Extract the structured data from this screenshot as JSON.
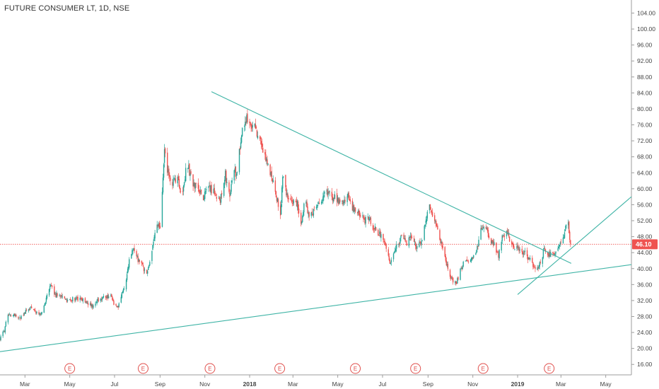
{
  "chart_title": "FUTURE CONSUMER LT, 1D, NSE",
  "colors": {
    "up": "#26a69a",
    "down": "#ef5350",
    "trendline": "#3fb4a6",
    "axis": "#9e9e9e",
    "price_label_bg": "#ef5350",
    "earnings": "#e0514e"
  },
  "chart_data": {
    "type": "candlestick",
    "title": "FUTURE CONSUMER LT, 1D, NSE",
    "symbol": "FUTURE CONSUMER LT",
    "interval": "1D",
    "exchange": "NSE",
    "y_ticks": [
      16,
      20,
      24,
      28,
      32,
      36,
      40,
      44,
      48,
      52,
      56,
      60,
      64,
      68,
      72,
      76,
      80,
      84,
      88,
      92,
      96,
      100,
      104
    ],
    "y_tick_labels": [
      "16.00",
      "20.00",
      "24.00",
      "28.00",
      "32.00",
      "36.00",
      "40.00",
      "44.00",
      "48.00",
      "52.00",
      "56.00",
      "60.00",
      "64.00",
      "68.00",
      "72.00",
      "76.00",
      "80.00",
      "84.00",
      "88.00",
      "92.00",
      "96.00",
      "100.00",
      "104.00"
    ],
    "ylim": [
      12.5,
      105.5
    ],
    "x_range": [
      "2017-01-26",
      "2019-06-05"
    ],
    "x_ticks": [
      {
        "date": "2017-03-01",
        "label": "Mar",
        "bold": false
      },
      {
        "date": "2017-05-01",
        "label": "May",
        "bold": false
      },
      {
        "date": "2017-07-01",
        "label": "Jul",
        "bold": false
      },
      {
        "date": "2017-09-01",
        "label": "Sep",
        "bold": false
      },
      {
        "date": "2017-11-01",
        "label": "Nov",
        "bold": false
      },
      {
        "date": "2018-01-01",
        "label": "2018",
        "bold": true
      },
      {
        "date": "2018-03-01",
        "label": "Mar",
        "bold": false
      },
      {
        "date": "2018-05-01",
        "label": "May",
        "bold": false
      },
      {
        "date": "2018-07-01",
        "label": "Jul",
        "bold": false
      },
      {
        "date": "2018-09-01",
        "label": "Sep",
        "bold": false
      },
      {
        "date": "2018-11-01",
        "label": "Nov",
        "bold": false
      },
      {
        "date": "2019-01-01",
        "label": "2019",
        "bold": true
      },
      {
        "date": "2019-03-01",
        "label": "Mar",
        "bold": false
      },
      {
        "date": "2019-05-01",
        "label": "May",
        "bold": false
      }
    ],
    "last_price": 46.1,
    "last_price_label": "46.10",
    "earnings_label": "E",
    "earnings_dates": [
      "2017-05-01",
      "2017-08-09",
      "2017-11-08",
      "2018-02-11",
      "2018-05-25",
      "2018-08-15",
      "2018-11-15",
      "2019-02-13"
    ],
    "trendlines": [
      {
        "name": "support",
        "from": [
          "2017-01-26",
          19.2
        ],
        "to": [
          "2019-06-05",
          41.0
        ]
      },
      {
        "name": "resistance",
        "from": [
          "2017-11-10",
          84.3
        ],
        "to": [
          "2019-03-15",
          41.3
        ]
      },
      {
        "name": "rising",
        "from": [
          "2019-01-01",
          33.5
        ],
        "to": [
          "2019-06-05",
          58.0
        ]
      }
    ],
    "price_path": [
      [
        "2017-01-26",
        22.5
      ],
      [
        "2017-02-01",
        24.5
      ],
      [
        "2017-02-05",
        28.0
      ],
      [
        "2017-02-14",
        28.5
      ],
      [
        "2017-02-22",
        27.5
      ],
      [
        "2017-03-01",
        29.0
      ],
      [
        "2017-03-10",
        30.5
      ],
      [
        "2017-03-18",
        28.5
      ],
      [
        "2017-03-26",
        29.5
      ],
      [
        "2017-04-01",
        34.0
      ],
      [
        "2017-04-05",
        35.5
      ],
      [
        "2017-04-12",
        33.5
      ],
      [
        "2017-04-20",
        33.0
      ],
      [
        "2017-04-28",
        32.0
      ],
      [
        "2017-05-08",
        32.5
      ],
      [
        "2017-05-18",
        32.0
      ],
      [
        "2017-05-25",
        31.5
      ],
      [
        "2017-06-01",
        30.5
      ],
      [
        "2017-06-10",
        32.5
      ],
      [
        "2017-06-20",
        33.0
      ],
      [
        "2017-06-26",
        33.0
      ],
      [
        "2017-07-01",
        31.0
      ],
      [
        "2017-07-06",
        30.5
      ],
      [
        "2017-07-12",
        34.0
      ],
      [
        "2017-07-18",
        38.5
      ],
      [
        "2017-07-22",
        43.0
      ],
      [
        "2017-07-26",
        45.0
      ],
      [
        "2017-08-01",
        42.5
      ],
      [
        "2017-08-08",
        40.5
      ],
      [
        "2017-08-14",
        38.5
      ],
      [
        "2017-08-18",
        42.0
      ],
      [
        "2017-08-24",
        47.5
      ],
      [
        "2017-08-28",
        51.0
      ],
      [
        "2017-09-01",
        50.0
      ],
      [
        "2017-09-03",
        56.0
      ],
      [
        "2017-09-05",
        62.0
      ],
      [
        "2017-09-07",
        69.0
      ],
      [
        "2017-09-12",
        64.0
      ],
      [
        "2017-09-18",
        61.0
      ],
      [
        "2017-09-24",
        63.0
      ],
      [
        "2017-10-01",
        58.0
      ],
      [
        "2017-10-08",
        67.0
      ],
      [
        "2017-10-14",
        62.0
      ],
      [
        "2017-10-22",
        60.0
      ],
      [
        "2017-10-30",
        58.0
      ],
      [
        "2017-11-08",
        60.0
      ],
      [
        "2017-11-15",
        59.0
      ],
      [
        "2017-11-22",
        57.0
      ],
      [
        "2017-11-29",
        63.5
      ],
      [
        "2017-12-03",
        58.0
      ],
      [
        "2017-12-06",
        59.0
      ],
      [
        "2017-12-10",
        66.0
      ],
      [
        "2017-12-14",
        63.0
      ],
      [
        "2017-12-20",
        72.0
      ],
      [
        "2017-12-26",
        78.0
      ],
      [
        "2018-01-01",
        77.0
      ],
      [
        "2018-01-08",
        75.0
      ],
      [
        "2018-01-14",
        73.0
      ],
      [
        "2018-01-20",
        69.0
      ],
      [
        "2018-01-26",
        66.0
      ],
      [
        "2018-02-02",
        62.0
      ],
      [
        "2018-02-08",
        57.0
      ],
      [
        "2018-02-12",
        53.0
      ],
      [
        "2018-02-15",
        63.0
      ],
      [
        "2018-02-22",
        57.5
      ],
      [
        "2018-03-01",
        57.0
      ],
      [
        "2018-03-07",
        56.0
      ],
      [
        "2018-03-12",
        51.0
      ],
      [
        "2018-03-17",
        57.0
      ],
      [
        "2018-03-24",
        53.0
      ],
      [
        "2018-04-01",
        55.0
      ],
      [
        "2018-04-10",
        58.0
      ],
      [
        "2018-04-20",
        59.0
      ],
      [
        "2018-04-30",
        57.0
      ],
      [
        "2018-05-08",
        56.0
      ],
      [
        "2018-05-15",
        58.0
      ],
      [
        "2018-05-22",
        55.0
      ],
      [
        "2018-05-30",
        54.0
      ],
      [
        "2018-06-06",
        52.0
      ],
      [
        "2018-06-12",
        53.0
      ],
      [
        "2018-06-18",
        50.5
      ],
      [
        "2018-06-25",
        49.0
      ],
      [
        "2018-07-01",
        47.5
      ],
      [
        "2018-07-06",
        45.0
      ],
      [
        "2018-07-12",
        41.0
      ],
      [
        "2018-07-16",
        44.0
      ],
      [
        "2018-07-22",
        46.0
      ],
      [
        "2018-07-28",
        48.5
      ],
      [
        "2018-08-03",
        46.5
      ],
      [
        "2018-08-10",
        48.0
      ],
      [
        "2018-08-17",
        45.0
      ],
      [
        "2018-08-24",
        47.0
      ],
      [
        "2018-08-29",
        52.0
      ],
      [
        "2018-09-02",
        56.0
      ],
      [
        "2018-09-07",
        54.0
      ],
      [
        "2018-09-13",
        50.0
      ],
      [
        "2018-09-19",
        46.0
      ],
      [
        "2018-09-25",
        42.0
      ],
      [
        "2018-10-01",
        38.0
      ],
      [
        "2018-10-05",
        37.0
      ],
      [
        "2018-10-09",
        36.0
      ],
      [
        "2018-10-14",
        39.0
      ],
      [
        "2018-10-20",
        42.0
      ],
      [
        "2018-10-28",
        41.5
      ],
      [
        "2018-11-03",
        44.0
      ],
      [
        "2018-11-07",
        45.0
      ],
      [
        "2018-11-12",
        49.5
      ],
      [
        "2018-11-18",
        51.5
      ],
      [
        "2018-11-24",
        47.0
      ],
      [
        "2018-12-01",
        46.0
      ],
      [
        "2018-12-06",
        43.0
      ],
      [
        "2018-12-12",
        48.5
      ],
      [
        "2018-12-18",
        49.0
      ],
      [
        "2018-12-24",
        46.0
      ],
      [
        "2019-01-01",
        45.0
      ],
      [
        "2019-01-10",
        44.0
      ],
      [
        "2019-01-18",
        42.0
      ],
      [
        "2019-01-26",
        40.0
      ],
      [
        "2019-02-01",
        41.0
      ],
      [
        "2019-02-06",
        45.0
      ],
      [
        "2019-02-12",
        43.5
      ],
      [
        "2019-02-20",
        44.0
      ],
      [
        "2019-02-26",
        46.0
      ],
      [
        "2019-03-04",
        48.0
      ],
      [
        "2019-03-08",
        50.5
      ],
      [
        "2019-03-11",
        51.0
      ],
      [
        "2019-03-14",
        46.1
      ]
    ]
  }
}
